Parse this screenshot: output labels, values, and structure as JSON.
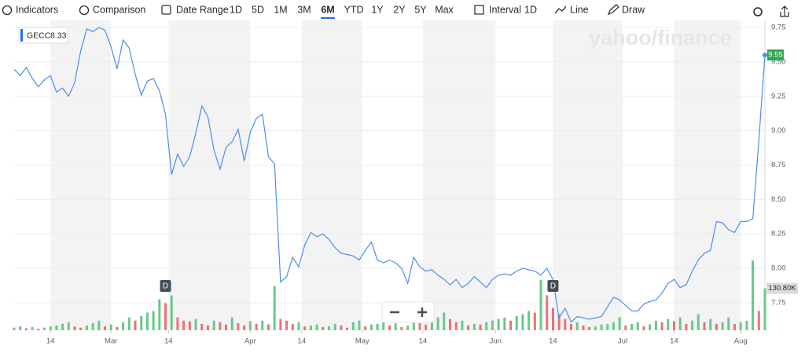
{
  "toolbar": {
    "indicators": "Indicators",
    "comparison": "Comparison",
    "date_range": "Date Range",
    "ranges": [
      "1D",
      "5D",
      "1M",
      "3M",
      "6M",
      "YTD",
      "1Y",
      "2Y",
      "5Y",
      "Max"
    ],
    "selected_range": "6M",
    "interval": "Interval",
    "interval_value": "1D",
    "chart_type": "Line",
    "draw": "Draw"
  },
  "watermark": "yahoo/finance",
  "chart_data": {
    "type": "line",
    "legend": {
      "symbol": "GECC",
      "value": "8.33"
    },
    "xlim": [
      0,
      124
    ],
    "xticks": [
      {
        "value": 6,
        "label": "14"
      },
      {
        "value": 16,
        "label": "Mar"
      },
      {
        "value": 25.5,
        "label": "14"
      },
      {
        "value": 39,
        "label": "Apr"
      },
      {
        "value": 47.5,
        "label": "14"
      },
      {
        "value": 57.5,
        "label": "May"
      },
      {
        "value": 67.5,
        "label": "14"
      },
      {
        "value": 79.5,
        "label": "Jun"
      },
      {
        "value": 89,
        "label": "14"
      },
      {
        "value": 100.5,
        "label": "Jul"
      },
      {
        "value": 109,
        "label": "14"
      },
      {
        "value": 120,
        "label": "Aug"
      }
    ],
    "ylim": [
      7.55,
      9.8
    ],
    "yticks": [
      9.75,
      {
        "value": 9.5,
        "label": "9.50"
      },
      9.25,
      {
        "value": 9,
        "label": "9.00"
      },
      8.75,
      {
        "value": 8.5,
        "label": "8.50"
      },
      8.25,
      {
        "value": 8,
        "label": "8.00"
      },
      7.75
    ],
    "series": [
      {
        "name": "GECC",
        "color": "#4a8fee",
        "last_label": "9.55",
        "last_color": "#2fa84f",
        "values": [
          9.447,
          9.4,
          9.46,
          9.38,
          9.32,
          9.37,
          9.4,
          9.28,
          9.31,
          9.25,
          9.35,
          9.58,
          9.74,
          9.72,
          9.75,
          9.73,
          9.61,
          9.45,
          9.66,
          9.6,
          9.41,
          9.26,
          9.36,
          9.38,
          9.29,
          9.12,
          8.68,
          8.83,
          8.74,
          8.81,
          8.98,
          9.18,
          9.1,
          8.86,
          8.72,
          8.88,
          8.92,
          9.01,
          8.78,
          8.99,
          9.09,
          9.12,
          8.81,
          8.76,
          7.9,
          7.94,
          8.08,
          8.01,
          8.17,
          8.26,
          8.23,
          8.25,
          8.21,
          8.15,
          8.11,
          8.1,
          8.09,
          8.06,
          8.13,
          8.19,
          8.06,
          8.04,
          8.06,
          8.04,
          8.0,
          7.89,
          8.08,
          8.01,
          7.98,
          7.99,
          7.95,
          7.92,
          7.88,
          7.92,
          7.86,
          7.89,
          7.94,
          7.9,
          7.86,
          7.92,
          7.95,
          7.96,
          7.95,
          7.98,
          8.0,
          7.99,
          7.98,
          7.95,
          8.0,
          7.92,
          7.64,
          7.71,
          7.61,
          7.65,
          7.64,
          7.63,
          7.64,
          7.65,
          7.72,
          7.79,
          7.77,
          7.73,
          7.69,
          7.69,
          7.74,
          7.76,
          7.77,
          7.82,
          7.89,
          7.92,
          7.86,
          7.88,
          7.98,
          8.06,
          8.11,
          8.13,
          8.34,
          8.33,
          8.28,
          8.26,
          8.34,
          8.34,
          8.36,
          8.93,
          9.55
        ]
      },
      {
        "name": "Volume",
        "up_color": "#67c98a",
        "down_color": "#ef6f78",
        "last_label": "130.80K",
        "ylim": [
          0,
          240
        ],
        "values": [
          8,
          12,
          6,
          10,
          5,
          8,
          12,
          15,
          20,
          25,
          12,
          8,
          15,
          22,
          30,
          12,
          18,
          10,
          25,
          40,
          30,
          45,
          55,
          60,
          97,
          85,
          109,
          40,
          30,
          28,
          35,
          20,
          15,
          30,
          25,
          18,
          40,
          22,
          15,
          28,
          20,
          30,
          18,
          138,
          35,
          30,
          20,
          25,
          12,
          15,
          18,
          10,
          12,
          20,
          15,
          8,
          25,
          30,
          12,
          18,
          20,
          25,
          15,
          22,
          10,
          15,
          28,
          22,
          18,
          30,
          40,
          55,
          35,
          25,
          30,
          15,
          20,
          18,
          25,
          30,
          35,
          40,
          30,
          45,
          50,
          60,
          55,
          157,
          109,
          70,
          50,
          35,
          20,
          25,
          15,
          10,
          12,
          18,
          20,
          25,
          40,
          15,
          20,
          25,
          12,
          18,
          30,
          25,
          35,
          28,
          40,
          20,
          30,
          50,
          25,
          35,
          20,
          25,
          40,
          20,
          25,
          30,
          218,
          60,
          130.8
        ]
      }
    ],
    "annotations": [
      {
        "x": 25,
        "label": "D"
      },
      {
        "x": 89,
        "label": "D"
      }
    ]
  }
}
